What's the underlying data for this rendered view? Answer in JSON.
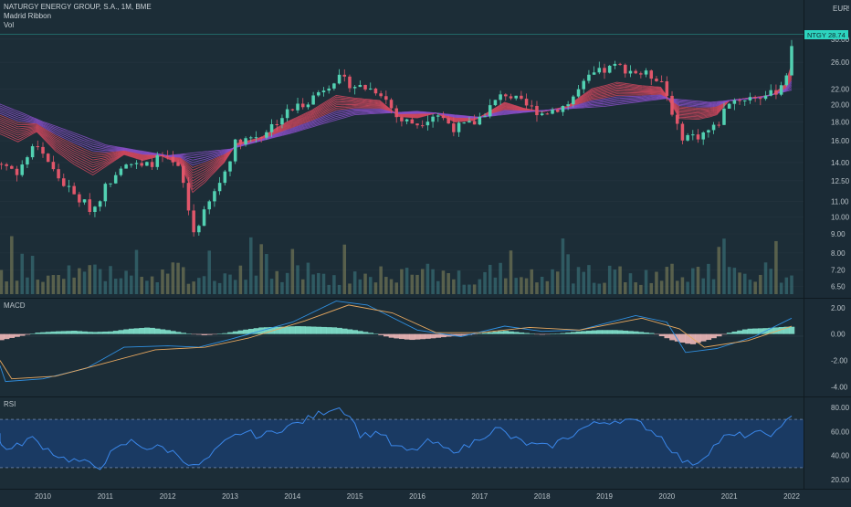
{
  "header": {
    "symbol_title": "NATURGY ENERGY GROUP, S.A., 1M, BME",
    "ribbon_label": "Madrid Ribbon",
    "vol_label": "Vol",
    "currency": "EUR"
  },
  "price_tag": {
    "ticker": "NTGY",
    "value": "28.74"
  },
  "chart_data": [
    {
      "type": "candlestick",
      "title": "NATURGY ENERGY GROUP, S.A., 1M, BME",
      "y_scale": "log",
      "ylim": [
        6.2,
        31
      ],
      "y_ticks": [
        "30.00",
        "26.00",
        "22.00",
        "20.00",
        "18.00",
        "16.00",
        "14.00",
        "12.50",
        "11.00",
        "10.00",
        "9.00",
        "8.00",
        "7.20",
        "6.50"
      ],
      "x_ticks": [
        "2010",
        "2011",
        "2012",
        "2013",
        "2014",
        "2015",
        "2016",
        "2017",
        "2018",
        "2019",
        "2020",
        "2021",
        "2022"
      ],
      "close_path": [
        [
          2009.0,
          15.4
        ],
        [
          2009.3,
          14.0
        ],
        [
          2009.6,
          13.2
        ],
        [
          2009.9,
          15.8
        ],
        [
          2010.2,
          13.0
        ],
        [
          2010.5,
          11.4
        ],
        [
          2010.8,
          10.4
        ],
        [
          2011.0,
          12.0
        ],
        [
          2011.3,
          14.2
        ],
        [
          2011.6,
          13.5
        ],
        [
          2011.9,
          14.5
        ],
        [
          2012.2,
          13.3
        ],
        [
          2012.4,
          9.0
        ],
        [
          2012.6,
          10.3
        ],
        [
          2012.9,
          13.0
        ],
        [
          2013.1,
          16.0
        ],
        [
          2013.5,
          16.6
        ],
        [
          2013.9,
          19.0
        ],
        [
          2014.3,
          20.8
        ],
        [
          2014.7,
          23.6
        ],
        [
          2015.0,
          22.5
        ],
        [
          2015.4,
          21.8
        ],
        [
          2015.7,
          18.2
        ],
        [
          2016.0,
          17.8
        ],
        [
          2016.3,
          19.0
        ],
        [
          2016.6,
          17.3
        ],
        [
          2016.9,
          17.8
        ],
        [
          2017.1,
          19.2
        ],
        [
          2017.4,
          21.5
        ],
        [
          2017.7,
          20.0
        ],
        [
          2018.0,
          19.0
        ],
        [
          2018.4,
          20.0
        ],
        [
          2018.8,
          24.0
        ],
        [
          2019.2,
          25.4
        ],
        [
          2019.6,
          24.2
        ],
        [
          2019.9,
          23.6
        ],
        [
          2020.2,
          16.5
        ],
        [
          2020.5,
          16.5
        ],
        [
          2020.8,
          17.5
        ],
        [
          2021.0,
          20.5
        ],
        [
          2021.4,
          21.0
        ],
        [
          2021.7,
          21.3
        ],
        [
          2021.9,
          23.5
        ],
        [
          2022.0,
          28.74
        ]
      ],
      "ribbon_ma": [
        [
          2009.0,
          21.0
        ],
        [
          2010.0,
          18.0
        ],
        [
          2011.0,
          15.6
        ],
        [
          2012.0,
          14.6
        ],
        [
          2013.0,
          15.2
        ],
        [
          2014.0,
          16.8
        ],
        [
          2015.0,
          18.8
        ],
        [
          2016.0,
          19.2
        ],
        [
          2017.0,
          18.5
        ],
        [
          2018.0,
          19.3
        ],
        [
          2019.0,
          19.8
        ],
        [
          2020.0,
          20.8
        ],
        [
          2020.7,
          20.3
        ],
        [
          2021.5,
          20.9
        ],
        [
          2022.0,
          21.9
        ]
      ],
      "volume_scale_note": "relative"
    },
    {
      "type": "line",
      "title": "MACD",
      "ylim": [
        -4.6,
        2.4
      ],
      "y_ticks": [
        "2.00",
        "0.00",
        "-2.00",
        "-4.00"
      ],
      "series": [
        {
          "values": [
            [
              2009.0,
              -2.4
            ],
            [
              2009.4,
              -3.6
            ],
            [
              2010.0,
              -3.4
            ],
            [
              2010.7,
              -2.6
            ],
            [
              2011.3,
              -1.0
            ],
            [
              2012.0,
              -0.9
            ],
            [
              2012.5,
              -1.0
            ],
            [
              2013.0,
              -0.4
            ],
            [
              2014.0,
              0.9
            ],
            [
              2014.7,
              2.5
            ],
            [
              2015.2,
              2.2
            ],
            [
              2016.0,
              0.3
            ],
            [
              2016.7,
              -0.2
            ],
            [
              2017.4,
              0.6
            ],
            [
              2018.0,
              0.2
            ],
            [
              2018.6,
              0.3
            ],
            [
              2019.5,
              1.4
            ],
            [
              2020.0,
              0.9
            ],
            [
              2020.3,
              -1.4
            ],
            [
              2020.8,
              -1.1
            ],
            [
              2021.4,
              -0.2
            ],
            [
              2022.0,
              1.2
            ]
          ]
        },
        {
          "values": [
            [
              2009.0,
              -2.0
            ],
            [
              2009.5,
              -3.4
            ],
            [
              2010.2,
              -3.2
            ],
            [
              2011.0,
              -2.2
            ],
            [
              2011.8,
              -1.2
            ],
            [
              2012.6,
              -1.0
            ],
            [
              2013.3,
              -0.3
            ],
            [
              2014.2,
              1.0
            ],
            [
              2014.9,
              2.2
            ],
            [
              2015.6,
              1.6
            ],
            [
              2016.3,
              0.1
            ],
            [
              2017.0,
              0.1
            ],
            [
              2017.8,
              0.5
            ],
            [
              2018.6,
              0.3
            ],
            [
              2019.6,
              1.2
            ],
            [
              2020.2,
              0.4
            ],
            [
              2020.6,
              -1.0
            ],
            [
              2021.3,
              -0.5
            ],
            [
              2022.0,
              0.6
            ]
          ]
        }
      ],
      "histogram": [
        [
          2009.0,
          -0.6
        ],
        [
          2009.3,
          -0.5
        ],
        [
          2009.6,
          -0.2
        ],
        [
          2009.9,
          0.1
        ],
        [
          2010.2,
          0.2
        ],
        [
          2010.5,
          0.25
        ],
        [
          2010.8,
          0.15
        ],
        [
          2011.1,
          0.2
        ],
        [
          2011.4,
          0.4
        ],
        [
          2011.7,
          0.5
        ],
        [
          2012.0,
          0.3
        ],
        [
          2012.3,
          0.05
        ],
        [
          2012.6,
          -0.1
        ],
        [
          2012.9,
          0.05
        ],
        [
          2013.2,
          0.3
        ],
        [
          2013.5,
          0.5
        ],
        [
          2013.8,
          0.55
        ],
        [
          2014.1,
          0.6
        ],
        [
          2014.4,
          0.55
        ],
        [
          2014.7,
          0.5
        ],
        [
          2015.0,
          0.3
        ],
        [
          2015.3,
          0.05
        ],
        [
          2015.6,
          -0.3
        ],
        [
          2015.9,
          -0.45
        ],
        [
          2016.2,
          -0.35
        ],
        [
          2016.5,
          -0.2
        ],
        [
          2016.8,
          -0.1
        ],
        [
          2017.1,
          0.1
        ],
        [
          2017.4,
          0.25
        ],
        [
          2017.7,
          0.1
        ],
        [
          2018.0,
          -0.05
        ],
        [
          2018.3,
          0.05
        ],
        [
          2018.6,
          0.2
        ],
        [
          2018.9,
          0.3
        ],
        [
          2019.2,
          0.3
        ],
        [
          2019.5,
          0.2
        ],
        [
          2019.8,
          0.05
        ],
        [
          2020.1,
          -0.5
        ],
        [
          2020.4,
          -0.8
        ],
        [
          2020.7,
          -0.4
        ],
        [
          2021.0,
          0.1
        ],
        [
          2021.3,
          0.4
        ],
        [
          2021.6,
          0.45
        ],
        [
          2021.9,
          0.55
        ]
      ]
    },
    {
      "type": "line",
      "title": "RSI",
      "ylim": [
        14,
        86
      ],
      "y_ticks": [
        "80.00",
        "60.00",
        "40.00",
        "20.00"
      ],
      "band": [
        30,
        70
      ],
      "series": [
        {
          "values": [
            [
              2009.0,
              60
            ],
            [
              2009.2,
              52
            ],
            [
              2009.5,
              45
            ],
            [
              2009.8,
              55
            ],
            [
              2010.0,
              48
            ],
            [
              2010.3,
              38
            ],
            [
              2010.6,
              35
            ],
            [
              2010.9,
              30
            ],
            [
              2011.1,
              42
            ],
            [
              2011.4,
              52
            ],
            [
              2011.7,
              46
            ],
            [
              2011.9,
              47
            ],
            [
              2012.2,
              40
            ],
            [
              2012.4,
              30
            ],
            [
              2012.6,
              35
            ],
            [
              2012.9,
              50
            ],
            [
              2013.2,
              60
            ],
            [
              2013.5,
              56
            ],
            [
              2013.8,
              62
            ],
            [
              2014.1,
              67
            ],
            [
              2014.4,
              74
            ],
            [
              2014.7,
              81
            ],
            [
              2014.9,
              75
            ],
            [
              2015.1,
              56
            ],
            [
              2015.4,
              60
            ],
            [
              2015.6,
              48
            ],
            [
              2015.9,
              43
            ],
            [
              2016.2,
              52
            ],
            [
              2016.5,
              44
            ],
            [
              2016.8,
              47
            ],
            [
              2017.0,
              55
            ],
            [
              2017.3,
              63
            ],
            [
              2017.5,
              55
            ],
            [
              2017.8,
              49
            ],
            [
              2018.1,
              47
            ],
            [
              2018.4,
              55
            ],
            [
              2018.7,
              64
            ],
            [
              2019.0,
              68
            ],
            [
              2019.3,
              70
            ],
            [
              2019.6,
              66
            ],
            [
              2019.9,
              56
            ],
            [
              2020.1,
              44
            ],
            [
              2020.3,
              33
            ],
            [
              2020.5,
              35
            ],
            [
              2020.7,
              45
            ],
            [
              2020.9,
              55
            ],
            [
              2021.2,
              57
            ],
            [
              2021.5,
              58
            ],
            [
              2021.8,
              59
            ],
            [
              2022.0,
              75
            ]
          ]
        }
      ]
    }
  ]
}
